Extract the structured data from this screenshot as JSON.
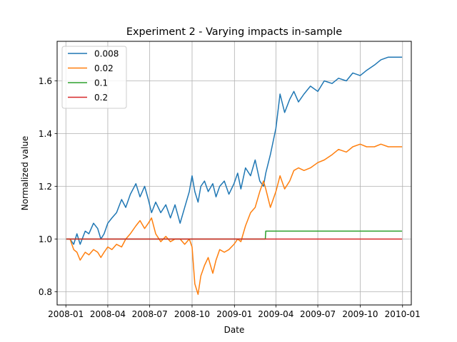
{
  "chart_data": {
    "type": "line",
    "title": "Experiment 2 - Varying impacts in-sample",
    "xlabel": "Date",
    "ylabel": "Normalized value",
    "xlim": [
      "2007-12-13",
      "2010-01-20"
    ],
    "ylim": [
      0.75,
      1.75
    ],
    "x_ticks": [
      "2008-01",
      "2008-04",
      "2008-07",
      "2008-10",
      "2009-01",
      "2009-04",
      "2009-07",
      "2009-10",
      "2010-01"
    ],
    "y_ticks": [
      "0.8",
      "1.0",
      "1.2",
      "1.4",
      "1.6"
    ],
    "grid": true,
    "legend_position": "upper left",
    "series": [
      {
        "name": "0.008",
        "color": "#1f77b4",
        "x": [
          "2008-01-02",
          "2008-01-10",
          "2008-01-18",
          "2008-01-25",
          "2008-02-01",
          "2008-02-12",
          "2008-02-20",
          "2008-03-01",
          "2008-03-10",
          "2008-03-17",
          "2008-03-24",
          "2008-04-01",
          "2008-04-10",
          "2008-04-20",
          "2008-05-01",
          "2008-05-10",
          "2008-05-20",
          "2008-06-01",
          "2008-06-10",
          "2008-06-20",
          "2008-06-28",
          "2008-07-05",
          "2008-07-14",
          "2008-07-25",
          "2008-08-05",
          "2008-08-15",
          "2008-08-25",
          "2008-09-05",
          "2008-09-15",
          "2008-09-25",
          "2008-10-01",
          "2008-10-07",
          "2008-10-14",
          "2008-10-20",
          "2008-10-28",
          "2008-11-05",
          "2008-11-15",
          "2008-11-22",
          "2008-11-30",
          "2008-12-10",
          "2008-12-20",
          "2008-12-31",
          "2009-01-08",
          "2009-01-15",
          "2009-01-25",
          "2009-02-05",
          "2009-02-15",
          "2009-02-25",
          "2009-03-05",
          "2009-03-10",
          "2009-03-20",
          "2009-04-01",
          "2009-04-10",
          "2009-04-20",
          "2009-05-01",
          "2009-05-10",
          "2009-05-20",
          "2009-06-01",
          "2009-06-15",
          "2009-07-01",
          "2009-07-15",
          "2009-08-01",
          "2009-08-15",
          "2009-09-01",
          "2009-09-15",
          "2009-10-01",
          "2009-10-15",
          "2009-11-01",
          "2009-11-15",
          "2009-12-01",
          "2009-12-15",
          "2009-12-31"
        ],
        "values": [
          1.0,
          1.0,
          0.98,
          1.02,
          0.98,
          1.03,
          1.02,
          1.06,
          1.04,
          1.0,
          1.02,
          1.06,
          1.08,
          1.1,
          1.15,
          1.12,
          1.17,
          1.21,
          1.16,
          1.2,
          1.15,
          1.1,
          1.14,
          1.1,
          1.13,
          1.08,
          1.13,
          1.06,
          1.12,
          1.18,
          1.24,
          1.18,
          1.14,
          1.2,
          1.22,
          1.18,
          1.21,
          1.16,
          1.2,
          1.22,
          1.17,
          1.21,
          1.25,
          1.19,
          1.27,
          1.24,
          1.3,
          1.22,
          1.2,
          1.25,
          1.32,
          1.42,
          1.55,
          1.48,
          1.53,
          1.56,
          1.52,
          1.55,
          1.58,
          1.56,
          1.6,
          1.59,
          1.61,
          1.6,
          1.63,
          1.62,
          1.64,
          1.66,
          1.68,
          1.69,
          1.69,
          1.69
        ]
      },
      {
        "name": "0.02",
        "color": "#ff7f0e",
        "x": [
          "2008-01-02",
          "2008-01-10",
          "2008-01-18",
          "2008-01-25",
          "2008-02-01",
          "2008-02-12",
          "2008-02-20",
          "2008-03-01",
          "2008-03-10",
          "2008-03-17",
          "2008-03-24",
          "2008-04-01",
          "2008-04-10",
          "2008-04-20",
          "2008-05-01",
          "2008-05-10",
          "2008-05-20",
          "2008-06-01",
          "2008-06-10",
          "2008-06-20",
          "2008-06-28",
          "2008-07-05",
          "2008-07-14",
          "2008-07-25",
          "2008-08-05",
          "2008-08-15",
          "2008-08-25",
          "2008-09-05",
          "2008-09-15",
          "2008-09-25",
          "2008-10-01",
          "2008-10-07",
          "2008-10-14",
          "2008-10-20",
          "2008-10-28",
          "2008-11-05",
          "2008-11-15",
          "2008-11-22",
          "2008-11-30",
          "2008-12-10",
          "2008-12-20",
          "2008-12-31",
          "2009-01-08",
          "2009-01-15",
          "2009-01-25",
          "2009-02-05",
          "2009-02-15",
          "2009-02-25",
          "2009-03-05",
          "2009-03-10",
          "2009-03-20",
          "2009-04-01",
          "2009-04-10",
          "2009-04-20",
          "2009-05-01",
          "2009-05-10",
          "2009-05-20",
          "2009-06-01",
          "2009-06-15",
          "2009-07-01",
          "2009-07-15",
          "2009-08-01",
          "2009-08-15",
          "2009-09-01",
          "2009-09-15",
          "2009-10-01",
          "2009-10-15",
          "2009-11-01",
          "2009-11-15",
          "2009-12-01",
          "2009-12-15",
          "2009-12-31"
        ],
        "values": [
          1.0,
          1.0,
          0.96,
          0.95,
          0.92,
          0.95,
          0.94,
          0.96,
          0.95,
          0.93,
          0.95,
          0.97,
          0.96,
          0.98,
          0.97,
          1.0,
          1.02,
          1.05,
          1.07,
          1.04,
          1.06,
          1.08,
          1.02,
          0.99,
          1.01,
          0.99,
          1.0,
          1.0,
          0.98,
          1.0,
          0.97,
          0.83,
          0.79,
          0.86,
          0.9,
          0.93,
          0.87,
          0.92,
          0.96,
          0.95,
          0.96,
          0.98,
          1.0,
          0.99,
          1.05,
          1.1,
          1.12,
          1.18,
          1.22,
          1.19,
          1.12,
          1.18,
          1.24,
          1.19,
          1.22,
          1.26,
          1.27,
          1.26,
          1.27,
          1.29,
          1.3,
          1.32,
          1.34,
          1.33,
          1.35,
          1.36,
          1.35,
          1.35,
          1.36,
          1.35,
          1.35,
          1.35
        ]
      },
      {
        "name": "0.1",
        "color": "#2ca02c",
        "x": [
          "2008-01-02",
          "2009-03-09",
          "2009-03-10",
          "2009-12-31"
        ],
        "values": [
          1.0,
          1.0,
          1.03,
          1.03
        ]
      },
      {
        "name": "0.2",
        "color": "#d62728",
        "x": [
          "2008-01-02",
          "2009-12-31"
        ],
        "values": [
          1.0,
          1.0
        ]
      }
    ]
  }
}
